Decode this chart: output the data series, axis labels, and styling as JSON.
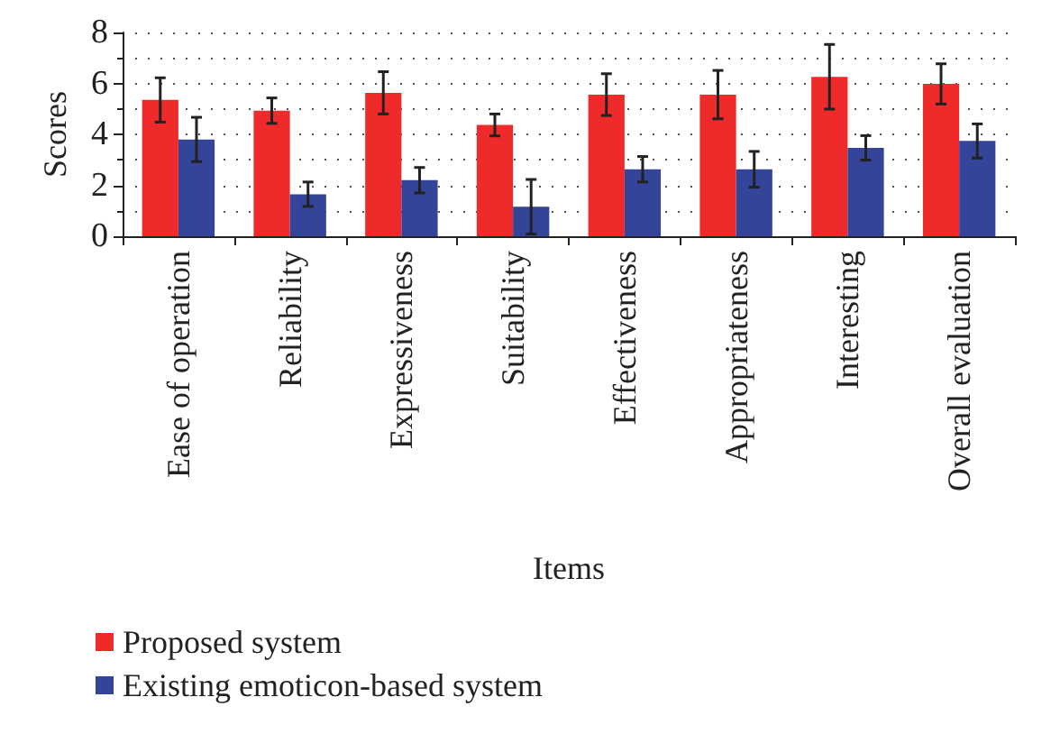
{
  "chart_data": {
    "type": "bar",
    "xlabel": "Items",
    "ylabel": "Scores",
    "categories": [
      "Ease of operation",
      "Reliability",
      "Expressiveness",
      "Suitability",
      "Effectiveness",
      "Appropriateness",
      "Interesting",
      "Overall evaluation"
    ],
    "series": [
      {
        "name": "Proposed system",
        "color": "#ee2a2a",
        "values": [
          5.35,
          4.93,
          5.63,
          4.37,
          5.56,
          5.56,
          6.26,
          5.98
        ],
        "errors": [
          0.87,
          0.5,
          0.83,
          0.43,
          0.82,
          0.95,
          1.27,
          0.79
        ]
      },
      {
        "name": "Existing emoticon-based system",
        "color": "#334499",
        "values": [
          3.8,
          1.65,
          2.2,
          1.16,
          2.63,
          2.63,
          3.47,
          3.74
        ],
        "errors": [
          0.87,
          0.48,
          0.5,
          1.07,
          0.5,
          0.7,
          0.48,
          0.67
        ]
      }
    ],
    "ylim": [
      0,
      8
    ],
    "yticks": [
      0,
      2,
      4,
      6,
      8
    ],
    "grid": "y",
    "legend": "bottom"
  }
}
